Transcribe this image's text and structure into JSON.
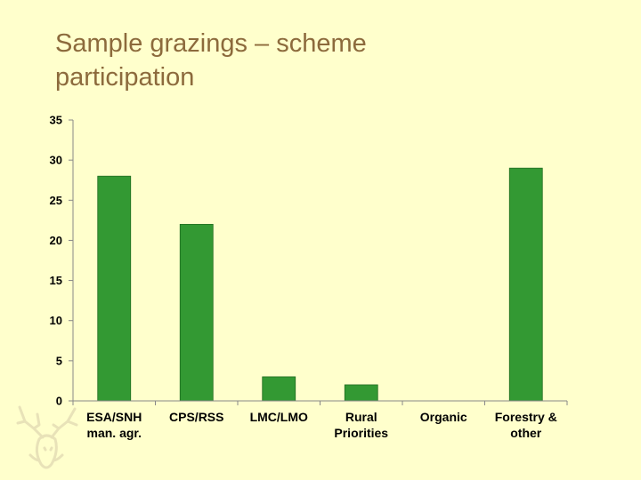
{
  "slide": {
    "title_line1": "Sample grazings – scheme",
    "title_line2": "participation"
  },
  "colors": {
    "background": "#ffffcc",
    "title": "#8c6a3c",
    "bar": "#339933",
    "axis": "#888888",
    "logo": "#e8e2b8"
  },
  "logo": {
    "icon": "stag-head-icon"
  },
  "chart_data": {
    "type": "bar",
    "title": "",
    "xlabel": "",
    "ylabel": "",
    "categories": [
      [
        "ESA/SNH",
        "man. agr."
      ],
      [
        "CPS/RSS"
      ],
      [
        "LMC/LMO"
      ],
      [
        "Rural",
        "Priorities"
      ],
      [
        "Organic"
      ],
      [
        "Forestry &",
        "other"
      ]
    ],
    "values": [
      28,
      22,
      3,
      2,
      0,
      29
    ],
    "ylim": [
      0,
      35
    ],
    "yticks": [
      0,
      5,
      10,
      15,
      20,
      25,
      30,
      35
    ],
    "grid": false,
    "legend": "none"
  }
}
